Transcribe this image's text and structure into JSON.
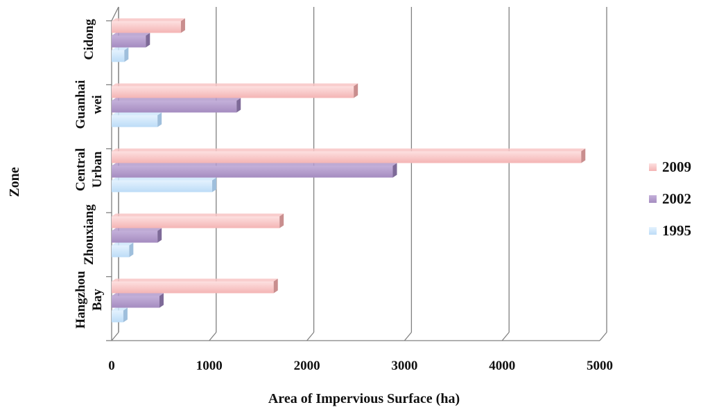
{
  "chart_data": {
    "type": "bar",
    "orientation": "horizontal",
    "style": "3d-clustered",
    "categories": [
      [
        "Hangzhou",
        "Bay"
      ],
      [
        "Zhouxiang"
      ],
      [
        "Central",
        "Urban"
      ],
      [
        "Guanhai",
        "wei"
      ],
      [
        "Cidong"
      ]
    ],
    "series": [
      {
        "name": "1995",
        "values": [
          120,
          180,
          1030,
          470,
          130
        ]
      },
      {
        "name": "2002",
        "values": [
          490,
          470,
          2880,
          1280,
          350
        ]
      },
      {
        "name": "2009",
        "values": [
          1660,
          1720,
          4810,
          2480,
          710
        ]
      }
    ],
    "legend_order": [
      "2009",
      "2002",
      "1995"
    ],
    "xlabel": "Area of Impervious Surface (ha)",
    "ylabel": "Zone",
    "xlim": [
      0,
      5000
    ],
    "xticks": [
      "0",
      "1000",
      "2000",
      "3000",
      "4000",
      "5000"
    ],
    "grid": "vertical",
    "legend_position": "right",
    "colors": {
      "1995": "#cfe7fb",
      "2002": "#b39bcc",
      "2009": "#f8c4c4",
      "gridline": "#808080",
      "axis": "#808080"
    }
  }
}
